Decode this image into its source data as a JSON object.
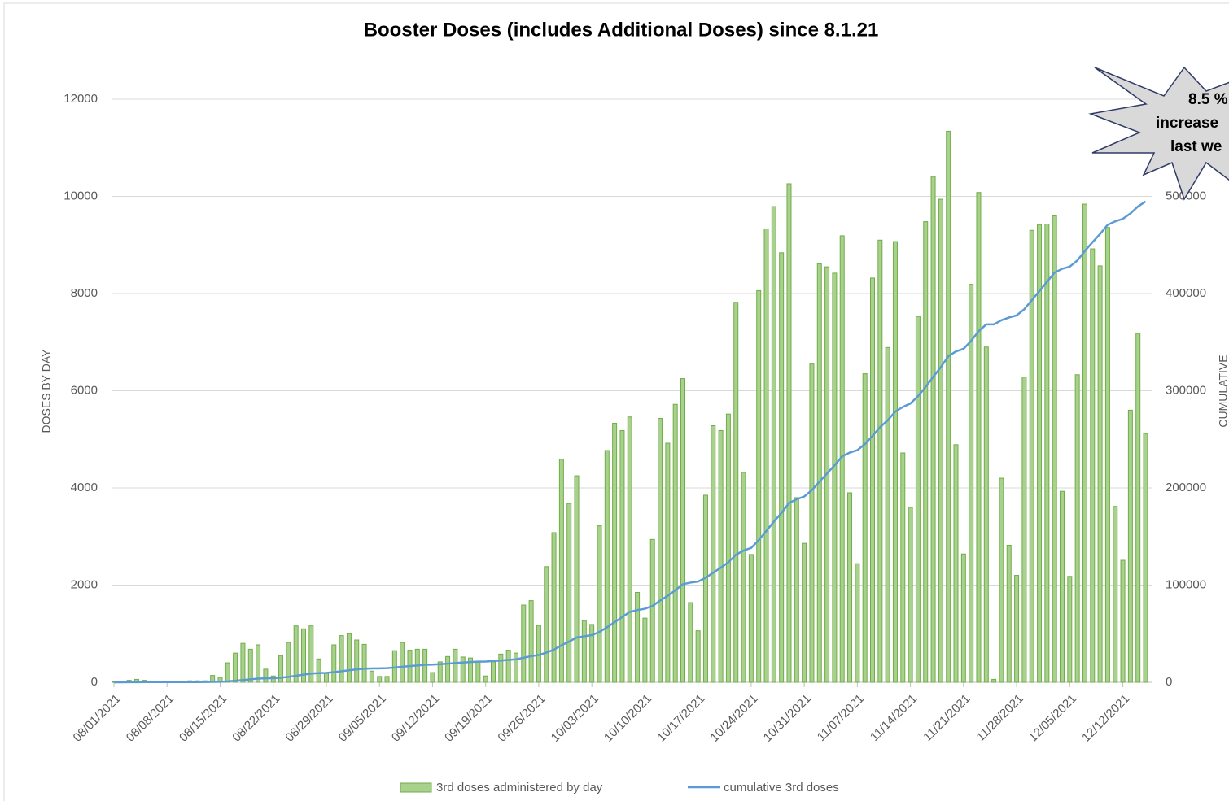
{
  "chart_data": {
    "type": "bar_line",
    "title": "Booster Doses (includes Additional Doses) since 8.1.21",
    "y_label": "DOSES BY DAY",
    "y2_label": "CUMULATIVE",
    "annotation": [
      "8.5 %",
      "increase",
      "last we"
    ],
    "categories": [
      "08/01/2021",
      null,
      null,
      null,
      null,
      null,
      null,
      "08/08/2021",
      null,
      null,
      null,
      null,
      null,
      null,
      "08/15/2021",
      null,
      null,
      null,
      null,
      null,
      null,
      "08/22/2021",
      null,
      null,
      null,
      null,
      null,
      null,
      "08/29/2021",
      null,
      null,
      null,
      null,
      null,
      null,
      "09/05/2021",
      null,
      null,
      null,
      null,
      null,
      null,
      "09/12/2021",
      null,
      null,
      null,
      null,
      null,
      null,
      "09/19/2021",
      null,
      null,
      null,
      null,
      null,
      null,
      "09/26/2021",
      null,
      null,
      null,
      null,
      null,
      null,
      "10/03/2021",
      null,
      null,
      null,
      null,
      null,
      null,
      "10/10/2021",
      null,
      null,
      null,
      null,
      null,
      null,
      "10/17/2021",
      null,
      null,
      null,
      null,
      null,
      null,
      "10/24/2021",
      null,
      null,
      null,
      null,
      null,
      null,
      "10/31/2021",
      null,
      null,
      null,
      null,
      null,
      null,
      "11/07/2021",
      null,
      null,
      null,
      null,
      null,
      null,
      "11/14/2021",
      null,
      null,
      null,
      null,
      null,
      null,
      "11/21/2021",
      null,
      null,
      null,
      null,
      null,
      null,
      "11/28/2021",
      null,
      null,
      null,
      null,
      null,
      null,
      "12/05/2021",
      null,
      null,
      null,
      null,
      null,
      null,
      "12/12/2021",
      null,
      null,
      null
    ],
    "series": [
      {
        "name": "3rd doses administered by day",
        "color": "#70ad47",
        "fill": "#a9d18e",
        "values": [
          10,
          20,
          40,
          60,
          40,
          10,
          5,
          5,
          5,
          5,
          30,
          30,
          30,
          140,
          100,
          400,
          600,
          800,
          680,
          770,
          270,
          130,
          550,
          820,
          1160,
          1100,
          1160,
          480,
          200,
          770,
          960,
          1000,
          870,
          780,
          230,
          120,
          120,
          650,
          820,
          660,
          680,
          680,
          200,
          420,
          530,
          680,
          520,
          500,
          420,
          130,
          420,
          580,
          660,
          600,
          1590,
          1680,
          1170,
          2380,
          3080,
          4590,
          3680,
          4250,
          1270,
          1190,
          3220,
          4770,
          5330,
          5180,
          5460,
          1850,
          1320,
          2940,
          5430,
          4920,
          5720,
          6250,
          1640,
          1060,
          3850,
          5280,
          5180,
          5520,
          7820,
          4320,
          2630,
          8060,
          9330,
          9790,
          8840,
          10260,
          3800,
          2860,
          6550,
          8610,
          8550,
          8420,
          9190,
          3900,
          2440,
          6350,
          8320,
          9100,
          6890,
          9070,
          4720,
          3600,
          7530,
          9480,
          10410,
          9940,
          11340,
          4890,
          2640,
          8190,
          10080,
          6900,
          60,
          4200,
          2820,
          2200,
          6280,
          9300,
          9420,
          9430,
          9600,
          3930,
          2180,
          6330,
          9840,
          8920,
          8570,
          9360,
          3620,
          2510,
          5600,
          7180,
          5120
        ]
      },
      {
        "name": "cumulative 3rd doses",
        "color": "#5b9bd5",
        "axis": "y2",
        "values": [
          10,
          30,
          70,
          130,
          170,
          180,
          185,
          190,
          195,
          200,
          230,
          260,
          290,
          430,
          530,
          930,
          1530,
          2330,
          3010,
          3780,
          4050,
          4180,
          4730,
          5550,
          6710,
          7810,
          8970,
          9450,
          9650,
          10420,
          11380,
          12380,
          13250,
          14030,
          14260,
          14380,
          14500,
          15150,
          15970,
          16630,
          17310,
          17990,
          18190,
          18610,
          19140,
          19820,
          20340,
          20840,
          21260,
          21390,
          21810,
          22390,
          23050,
          23650,
          25240,
          26920,
          28090,
          30470,
          33550,
          38140,
          41820,
          46070,
          47340,
          48530,
          51750,
          56520,
          61850,
          67030,
          72490,
          74340,
          75660,
          78600,
          84030,
          88950,
          94670,
          100920,
          102560,
          103620,
          107470,
          112750,
          117930,
          123450,
          131270,
          135590,
          138220,
          146280,
          155610,
          165400,
          174240,
          184500,
          188300,
          191160,
          197710,
          206320,
          214870,
          223290,
          232480,
          236380,
          238820,
          245170,
          253490,
          262590,
          269480,
          278550,
          283270,
          286870,
          294400,
          303880,
          314290,
          324230,
          335570,
          340460,
          343100,
          351290,
          361370,
          368270,
          368330,
          372530,
          375350,
          377550,
          383830,
          393130,
          402550,
          411980,
          421580,
          425510,
          427690,
          434020,
          443860,
          452780,
          461350,
          470710,
          474330,
          476840,
          482440,
          489620,
          494740
        ]
      }
    ],
    "ylim": [
      0,
      12000
    ],
    "yticks": [
      0,
      2000,
      4000,
      6000,
      8000,
      10000,
      12000
    ],
    "y2lim": [
      0,
      600000
    ],
    "y2ticks": [
      0,
      100000,
      200000,
      300000,
      400000,
      500000
    ],
    "grid": true
  }
}
